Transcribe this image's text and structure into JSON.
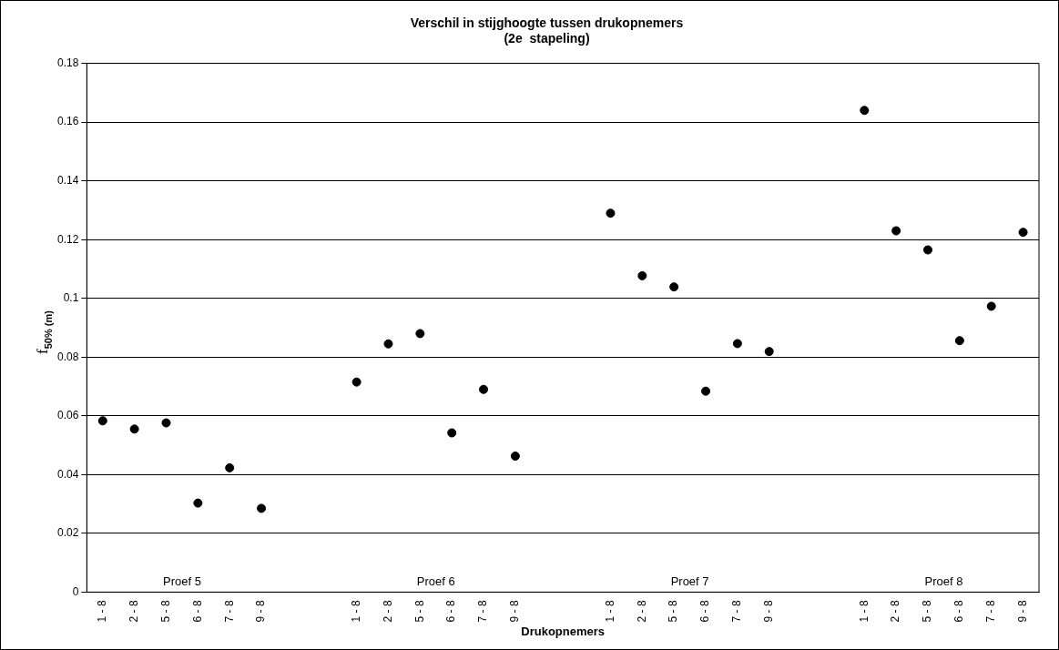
{
  "chart_data": {
    "type": "scatter",
    "title": "Verschil in stijghoogte tussen drukopnemers\n(2e  stapeling)",
    "xlabel": "Drukopnemers",
    "ylabel": "f$_{50% (m)}$",
    "categories": [
      "1 - 8",
      "2 - 8",
      "5 - 8",
      "6 - 8",
      "7 - 8",
      "9 - 8",
      null,
      null,
      "1 - 8",
      "2 - 8",
      "5 - 8",
      "6 - 8",
      "7 - 8",
      "9 - 8",
      null,
      null,
      "1 - 8",
      "2 - 8",
      "5 - 8",
      "6 - 8",
      "7 - 8",
      "9 - 8",
      null,
      null,
      "1 - 8",
      "2 - 8",
      "5 - 8",
      "6 - 8",
      "7 - 8",
      "9 - 8"
    ],
    "values": [
      0.0583,
      0.0555,
      0.0576,
      0.0303,
      0.0423,
      0.0285,
      null,
      null,
      0.0715,
      0.0845,
      0.088,
      0.0542,
      0.069,
      0.0463,
      null,
      null,
      0.129,
      0.1077,
      0.1039,
      0.0684,
      0.0846,
      0.0819,
      null,
      null,
      0.164,
      0.123,
      0.1165,
      0.0856,
      0.0973,
      0.1225
    ],
    "color": "#000000",
    "marker": "circle",
    "ylim": [
      0,
      0.18
    ],
    "yticks": [
      0,
      0.02,
      0.04,
      0.06,
      0.08,
      0.1,
      0.12,
      0.14,
      0.16,
      0.18
    ],
    "grid": "y",
    "legend": false,
    "annotations": [
      "Proef 5",
      "Proef 6",
      "Proef 7",
      "Proef 8"
    ]
  }
}
